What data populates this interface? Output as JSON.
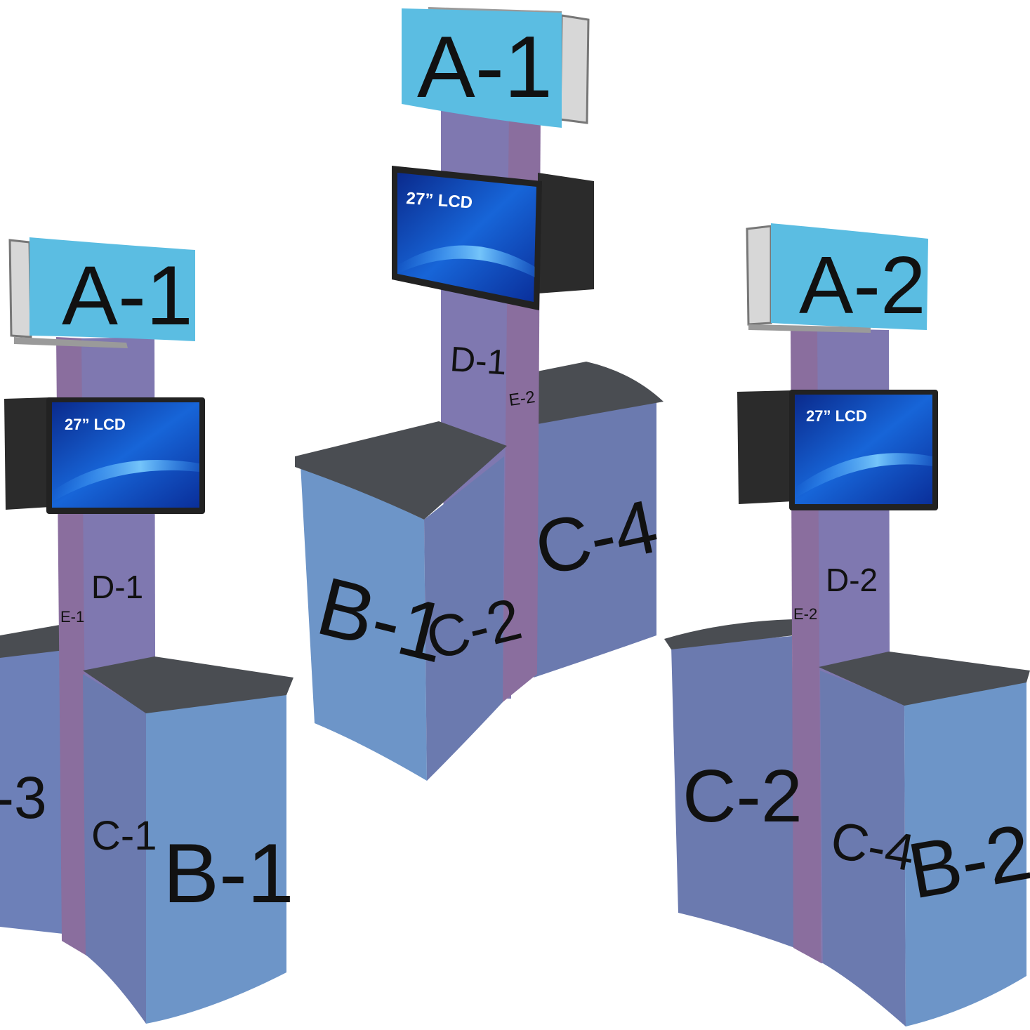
{
  "colors": {
    "sign_header": "#5bbde2",
    "tower_front": "#7f78b0",
    "tower_side": "#8a6e9e",
    "cabinet_front": "#6d95c8",
    "cabinet_side": "#6b7aaf",
    "counter_top": "#4a4d52",
    "monitor_frame": "#222222",
    "screen_blue": "#1456c8"
  },
  "left_kiosk": {
    "sign": "A-1",
    "monitor": "27” LCD",
    "tower_front": "D-1",
    "tower_side": "E-1",
    "cabinet_front": "B-1",
    "cabinet_side": "C-1",
    "cabinet_back": "-3"
  },
  "center_kiosk": {
    "sign": "A-1",
    "monitor": "27” LCD",
    "tower_front": "D-1",
    "tower_side": "E-2",
    "cabinet_front": "B-1",
    "cabinet_side": "C-2",
    "cabinet_back": "C-4"
  },
  "right_kiosk": {
    "sign": "A-2",
    "monitor": "27” LCD",
    "tower_front": "D-2",
    "tower_side": "E-2",
    "cabinet_front": "B-2",
    "cabinet_side": "C-4",
    "cabinet_back": "C-2"
  }
}
